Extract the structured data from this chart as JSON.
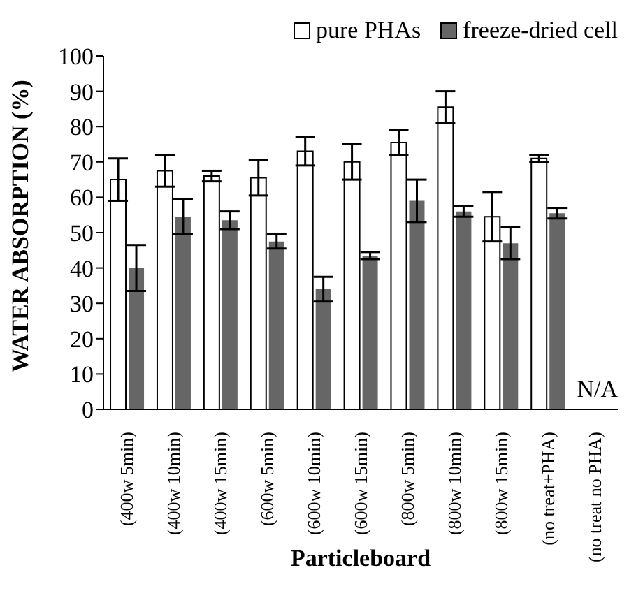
{
  "chart_data": {
    "type": "bar",
    "xlabel": "Particleboard",
    "ylabel": "WATER ABSORPTION (%)",
    "categories": [
      "(400w 5min)",
      "(400w 10min)",
      "(400w 15min)",
      "(600w 5min)",
      "(600w 10min)",
      "(600w 15min)",
      "(800w 5min)",
      "(800w 10min)",
      "(800w 15min)",
      "(no treat+PHA)",
      "(no treat no PHA)"
    ],
    "series": [
      {
        "name": "pure PHAs",
        "color": "#ffffff",
        "values": [
          65,
          67.5,
          66,
          65.5,
          73,
          70,
          75.5,
          85.5,
          54.5,
          71,
          null
        ],
        "errors": [
          6,
          4.5,
          1.5,
          5,
          4,
          5,
          3.5,
          4.5,
          7,
          1,
          null
        ]
      },
      {
        "name": "freeze-dried cell",
        "color": "#666666",
        "values": [
          40,
          54.5,
          53.5,
          47.5,
          34,
          43.5,
          59,
          56,
          47,
          55.5,
          null
        ],
        "errors": [
          6.5,
          5,
          2.5,
          2,
          3.5,
          1,
          6,
          1.5,
          4.5,
          1.5,
          null
        ]
      }
    ],
    "ylim": [
      0,
      100
    ],
    "yticks": [
      0,
      10,
      20,
      30,
      40,
      50,
      60,
      70,
      80,
      90,
      100
    ],
    "grid": false,
    "legend": "top right",
    "annotations": [
      "N/A"
    ]
  }
}
